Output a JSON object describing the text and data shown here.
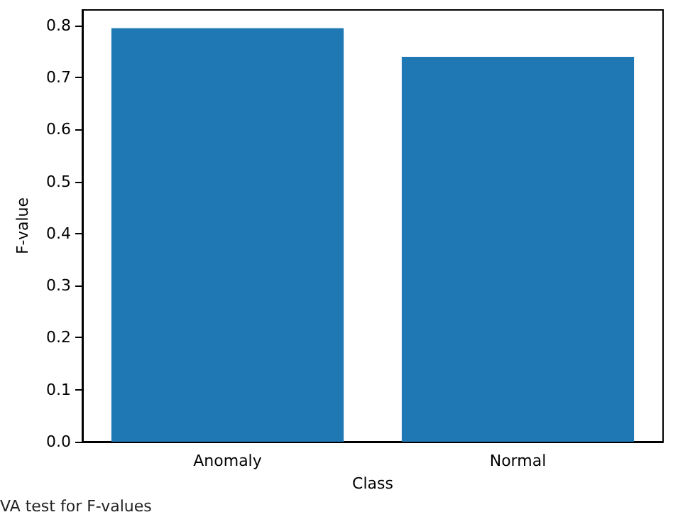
{
  "chart_data": {
    "type": "bar",
    "xlabel": "Class",
    "ylabel": "F-value",
    "categories": [
      "Anomaly",
      "Normal"
    ],
    "values": [
      0.795,
      0.74
    ],
    "color": "#1f77b4",
    "ylim": [
      0,
      0.83
    ],
    "yticks": [
      {
        "value": 0,
        "label": "0.0"
      },
      0.1,
      0.2,
      0.3,
      0.4,
      0.5,
      0.6,
      0.7,
      0.8
    ],
    "grid": false,
    "annotations": [
      "VA test for F-values"
    ]
  }
}
